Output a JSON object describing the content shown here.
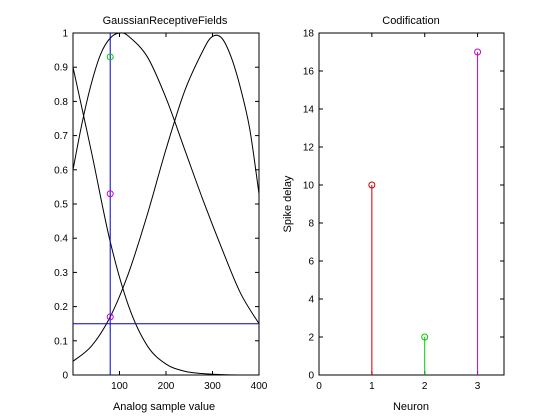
{
  "colors": {
    "axis": "#000000",
    "curve": "#000000",
    "threshold": "#0000cc",
    "red": "#cc0000",
    "green": "#00cc00",
    "magenta": "#cc00cc"
  },
  "chart_data": [
    {
      "type": "line",
      "title": "GaussianReceptiveFields",
      "xlabel": "Analog sample value",
      "ylabel": "",
      "xlim": [
        0,
        400
      ],
      "ylim": [
        0,
        1
      ],
      "xticks": [
        "100",
        "200",
        "300",
        "400"
      ],
      "yticks": [
        "0",
        "0.1",
        "0.2",
        "0.3",
        "0.4",
        "0.5",
        "0.6",
        "0.7",
        "0.8",
        "0.9",
        "1"
      ],
      "grid": false,
      "series": [
        {
          "values": [
            [
              0,
              0.9
            ],
            [
              40,
              0.65
            ],
            [
              80,
              0.39
            ],
            [
              120,
              0.2
            ],
            [
              160,
              0.085
            ],
            [
              200,
              0.032
            ],
            [
              240,
              0.011
            ],
            [
              280,
              0.004
            ],
            [
              320,
              0.001
            ],
            [
              360,
              0.0
            ],
            [
              400,
              0.0
            ]
          ]
        },
        {
          "values": [
            [
              0,
              0.6
            ],
            [
              20,
              0.74
            ],
            [
              40,
              0.855
            ],
            [
              60,
              0.94
            ],
            [
              80,
              0.985
            ],
            [
              100,
              1.0
            ],
            [
              120,
              0.99
            ],
            [
              160,
              0.93
            ],
            [
              200,
              0.81
            ],
            [
              240,
              0.66
            ],
            [
              280,
              0.51
            ],
            [
              320,
              0.37
            ],
            [
              360,
              0.24
            ],
            [
              400,
              0.15
            ]
          ]
        },
        {
          "values": [
            [
              0,
              0.04
            ],
            [
              40,
              0.085
            ],
            [
              80,
              0.17
            ],
            [
              120,
              0.3
            ],
            [
              160,
              0.47
            ],
            [
              200,
              0.66
            ],
            [
              240,
              0.83
            ],
            [
              280,
              0.95
            ],
            [
              300,
              0.99
            ],
            [
              320,
              0.985
            ],
            [
              340,
              0.93
            ],
            [
              360,
              0.84
            ],
            [
              380,
              0.72
            ],
            [
              400,
              0.53
            ]
          ]
        }
      ],
      "reference_lines": {
        "vertical_x": 80,
        "horizontal_y": 0.15
      },
      "markers": [
        {
          "x": 80,
          "y": 0.93,
          "color": "green"
        },
        {
          "x": 80,
          "y": 0.53,
          "color": "magenta"
        },
        {
          "x": 80,
          "y": 0.17,
          "color": "magenta"
        }
      ]
    },
    {
      "type": "stem",
      "title": "Codification",
      "xlabel": "Neuron",
      "ylabel": "Spike delay",
      "xlim": [
        0,
        3.5
      ],
      "ylim": [
        0,
        18
      ],
      "xticks": [
        "0",
        "1",
        "2",
        "3"
      ],
      "yticks": [
        "0",
        "2",
        "4",
        "6",
        "8",
        "10",
        "12",
        "14",
        "16",
        "18"
      ],
      "grid": false,
      "stems": [
        {
          "x": 1,
          "y": 10,
          "color": "red"
        },
        {
          "x": 2,
          "y": 2,
          "color": "green"
        },
        {
          "x": 3,
          "y": 17,
          "color": "magenta"
        }
      ]
    }
  ]
}
